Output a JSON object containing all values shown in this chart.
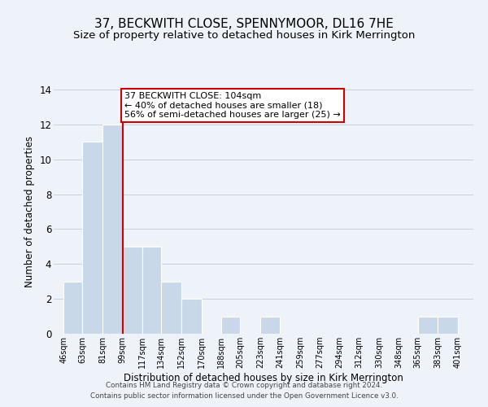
{
  "title": "37, BECKWITH CLOSE, SPENNYMOOR, DL16 7HE",
  "subtitle": "Size of property relative to detached houses in Kirk Merrington",
  "xlabel": "Distribution of detached houses by size in Kirk Merrington",
  "ylabel": "Number of detached properties",
  "bar_left_edges": [
    46,
    63,
    81,
    99,
    117,
    134,
    152,
    170,
    188,
    205,
    223,
    241,
    259,
    277,
    294,
    312,
    330,
    348,
    365,
    383,
    401
  ],
  "bar_widths": [
    17,
    18,
    18,
    18,
    17,
    18,
    18,
    18,
    17,
    18,
    18,
    18,
    18,
    17,
    18,
    18,
    18,
    17,
    18,
    18,
    14
  ],
  "bar_heights": [
    3,
    11,
    12,
    5,
    5,
    3,
    2,
    0,
    1,
    0,
    1,
    0,
    0,
    0,
    0,
    0,
    0,
    0,
    1,
    1,
    0
  ],
  "bar_color": "#c8d8e8",
  "bar_edge_color": "#ffffff",
  "grid_color": "#c0d0e0",
  "red_line_x": 99,
  "annotation_text": "37 BECKWITH CLOSE: 104sqm\n← 40% of detached houses are smaller (18)\n56% of semi-detached houses are larger (25) →",
  "annotation_box_color": "#ffffff",
  "annotation_box_edge_color": "#cc0000",
  "annotation_font_size": 8.0,
  "xlim": [
    37,
    415
  ],
  "ylim": [
    0,
    14
  ],
  "yticks": [
    0,
    2,
    4,
    6,
    8,
    10,
    12,
    14
  ],
  "xtick_labels": [
    "46sqm",
    "63sqm",
    "81sqm",
    "99sqm",
    "117sqm",
    "134sqm",
    "152sqm",
    "170sqm",
    "188sqm",
    "205sqm",
    "223sqm",
    "241sqm",
    "259sqm",
    "277sqm",
    "294sqm",
    "312sqm",
    "330sqm",
    "348sqm",
    "365sqm",
    "383sqm",
    "401sqm"
  ],
  "xtick_positions": [
    46,
    63,
    81,
    99,
    117,
    134,
    152,
    170,
    188,
    205,
    223,
    241,
    259,
    277,
    294,
    312,
    330,
    348,
    365,
    383,
    401
  ],
  "footer1": "Contains HM Land Registry data © Crown copyright and database right 2024.",
  "footer2": "Contains public sector information licensed under the Open Government Licence v3.0.",
  "background_color": "#eef3fa",
  "title_fontsize": 11,
  "subtitle_fontsize": 9.5
}
